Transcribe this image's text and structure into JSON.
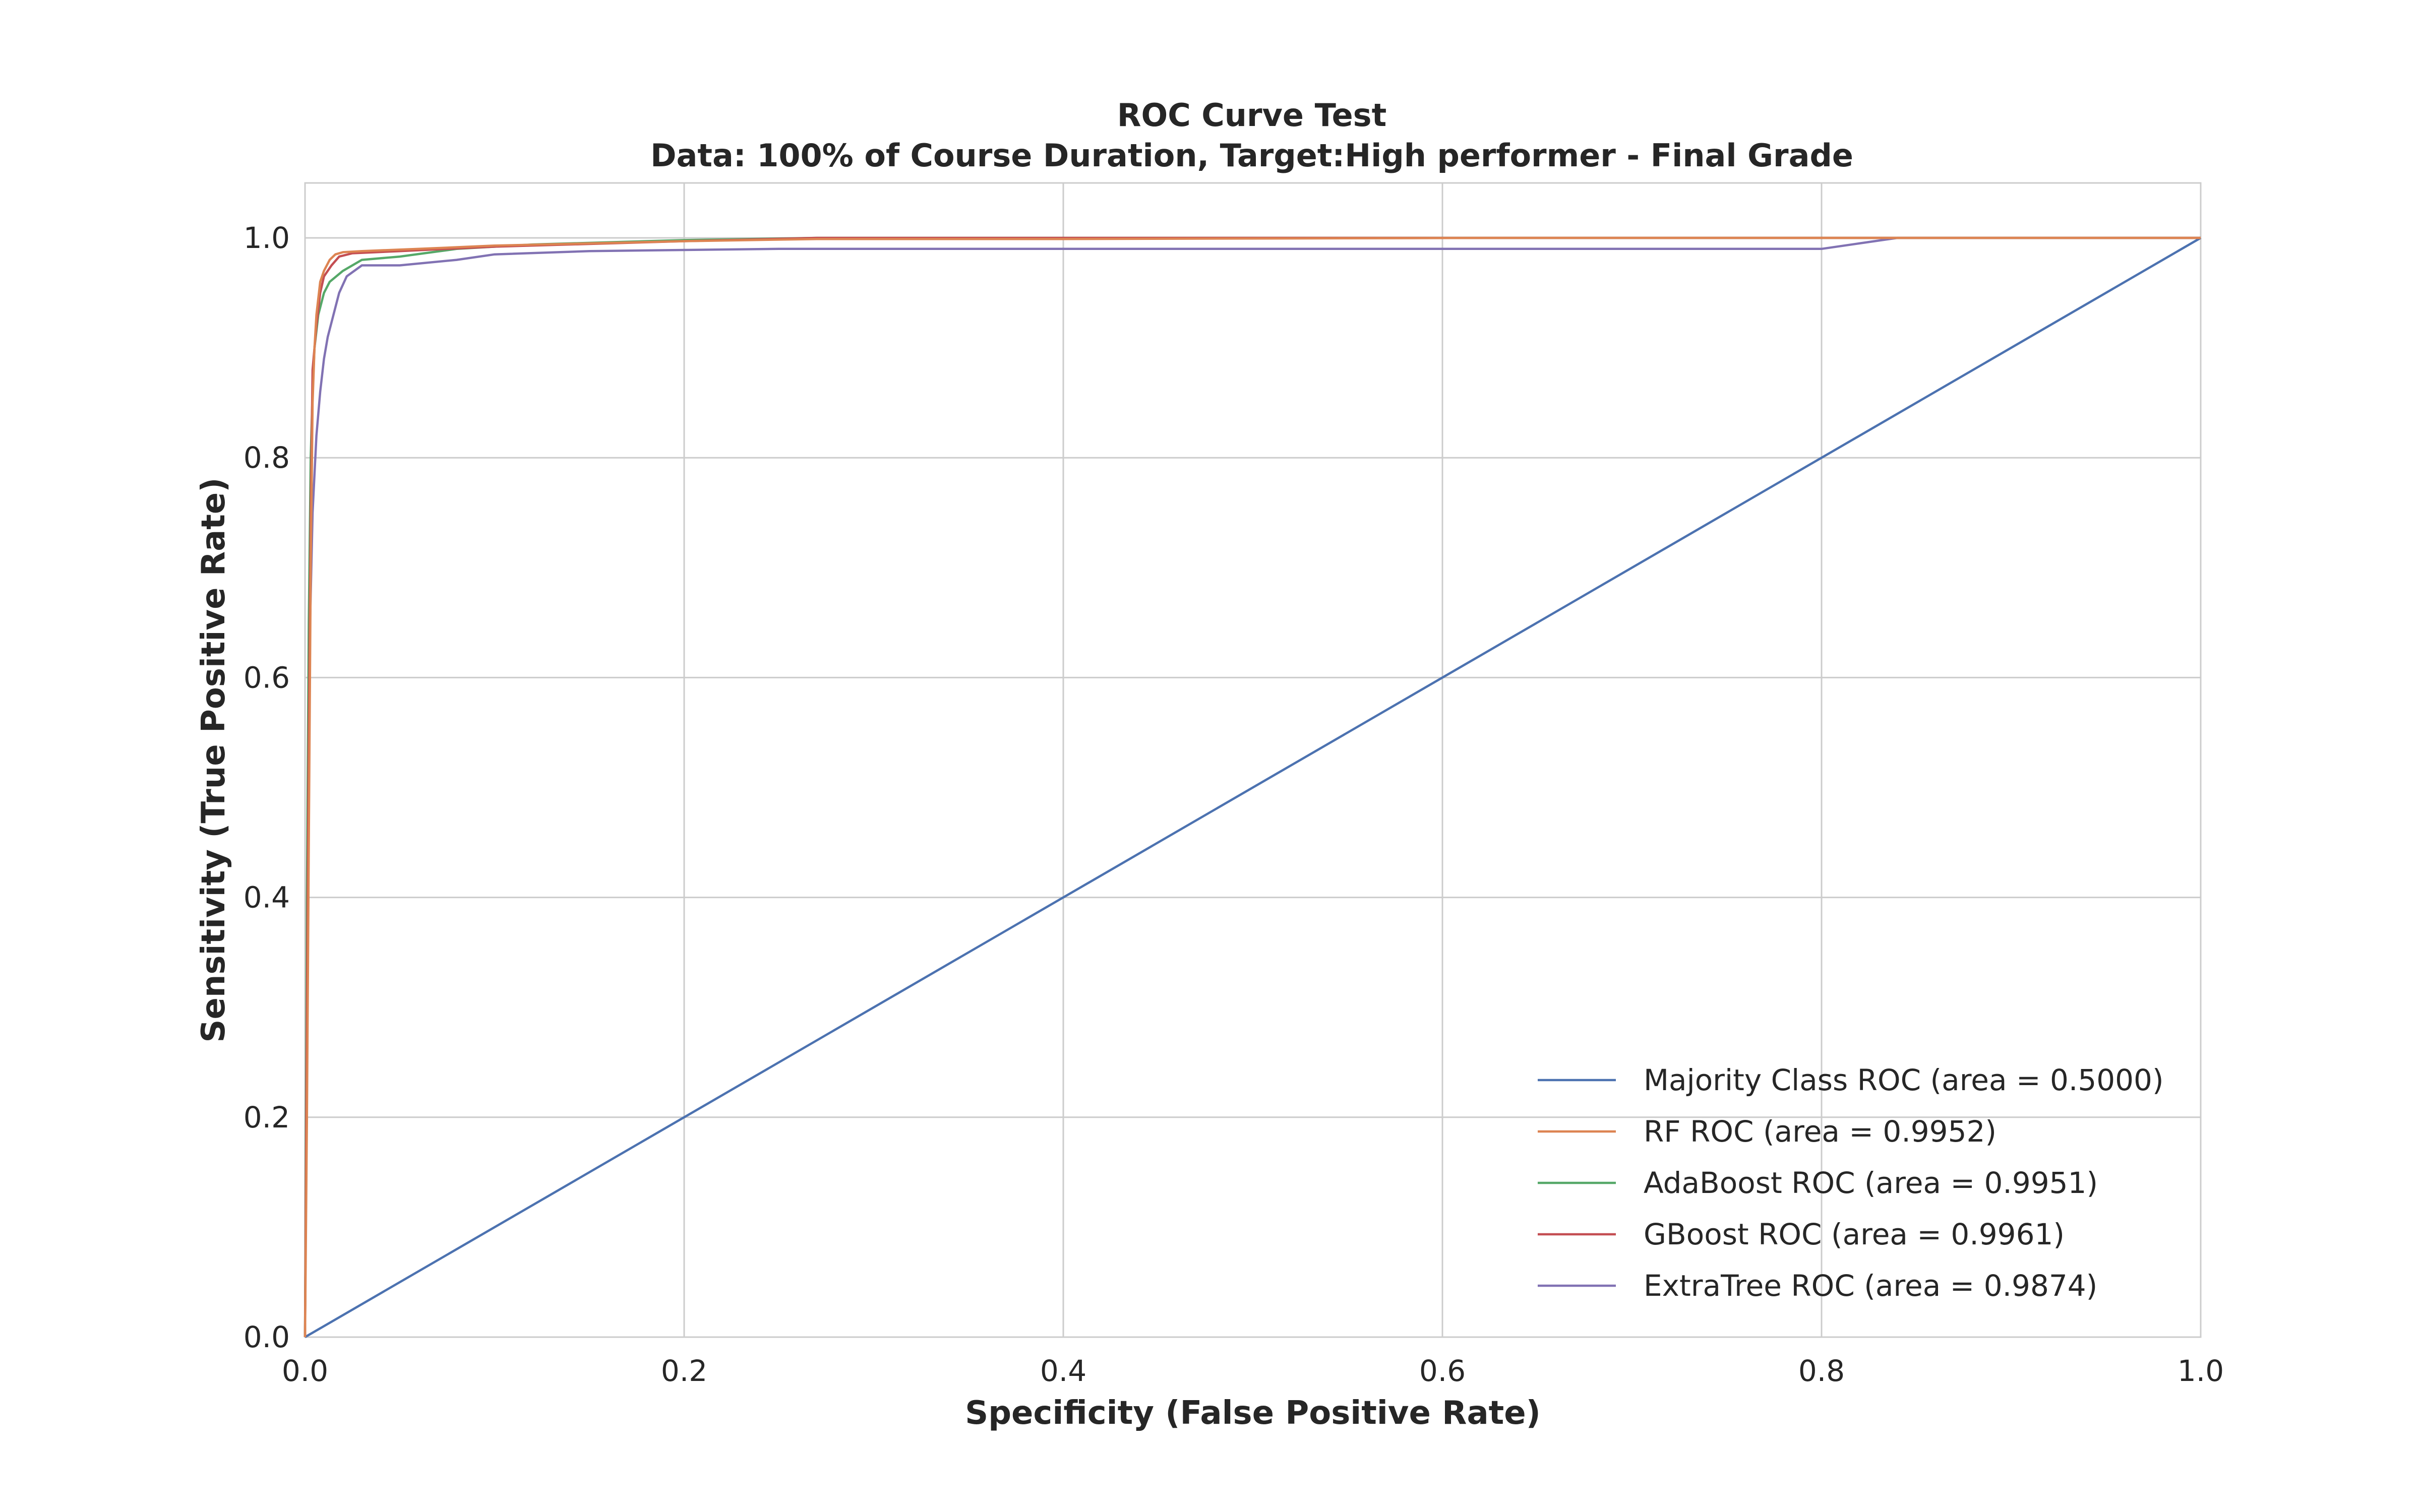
{
  "chart_data": {
    "type": "line",
    "title": "ROC Curve Test",
    "subtitle": "Data: 100% of Course Duration, Target:High performer - Final Grade",
    "xlabel": "Specificity (False Positive Rate)",
    "ylabel": "Sensitivity (True Positive Rate)",
    "xlim": [
      0.0,
      1.0
    ],
    "ylim": [
      0.0,
      1.0
    ],
    "xticks": [
      "0.0",
      "0.2",
      "0.4",
      "0.6",
      "0.8",
      "1.0"
    ],
    "yticks": [
      "0.0",
      "0.2",
      "0.4",
      "0.6",
      "0.8",
      "1.0"
    ],
    "grid": true,
    "legend_position": "bottom-right",
    "series": [
      {
        "name": "Majority Class ROC (area = 0.5000)",
        "color": "#4c72b0",
        "x": [
          0.0,
          1.0
        ],
        "y": [
          0.0,
          1.0
        ]
      },
      {
        "name": "RF ROC (area = 0.9952)",
        "color": "#dd8452",
        "x": [
          0.0,
          0.001,
          0.002,
          0.003,
          0.004,
          0.005,
          0.006,
          0.008,
          0.01,
          0.013,
          0.016,
          0.02,
          0.03,
          0.06,
          0.1,
          0.15,
          0.2,
          0.27,
          0.4,
          0.63,
          0.85,
          1.0
        ],
        "y": [
          0.0,
          0.2,
          0.45,
          0.7,
          0.85,
          0.9,
          0.93,
          0.96,
          0.97,
          0.98,
          0.985,
          0.987,
          0.988,
          0.99,
          0.993,
          0.995,
          0.997,
          0.999,
          0.999,
          1.0,
          1.0,
          1.0
        ]
      },
      {
        "name": "AdaBoost ROC (area = 0.9951)",
        "color": "#55a868",
        "x": [
          0.0,
          0.001,
          0.002,
          0.003,
          0.004,
          0.005,
          0.007,
          0.01,
          0.013,
          0.02,
          0.03,
          0.05,
          0.08,
          0.12,
          0.2,
          0.27,
          0.5,
          0.85,
          1.0
        ],
        "y": [
          0.0,
          0.4,
          0.65,
          0.8,
          0.86,
          0.9,
          0.93,
          0.95,
          0.96,
          0.97,
          0.98,
          0.983,
          0.99,
          0.994,
          0.998,
          1.0,
          1.0,
          1.0,
          1.0
        ]
      },
      {
        "name": "GBoost ROC (area = 0.9961)",
        "color": "#c44e52",
        "x": [
          0.0,
          0.001,
          0.002,
          0.003,
          0.004,
          0.006,
          0.008,
          0.01,
          0.014,
          0.018,
          0.025,
          0.05,
          0.1,
          0.2,
          0.27,
          0.5,
          0.63,
          0.85,
          1.0
        ],
        "y": [
          0.0,
          0.3,
          0.55,
          0.75,
          0.88,
          0.92,
          0.95,
          0.965,
          0.975,
          0.983,
          0.986,
          0.988,
          0.992,
          0.997,
          1.0,
          1.0,
          1.0,
          1.0,
          1.0
        ]
      },
      {
        "name": "ExtraTree ROC (area = 0.9874)",
        "color": "#8172b3",
        "x": [
          0.0,
          0.002,
          0.004,
          0.006,
          0.008,
          0.01,
          0.012,
          0.015,
          0.018,
          0.022,
          0.03,
          0.05,
          0.08,
          0.1,
          0.15,
          0.25,
          0.5,
          0.8,
          0.82,
          0.84,
          1.0
        ],
        "y": [
          0.0,
          0.6,
          0.75,
          0.82,
          0.86,
          0.89,
          0.91,
          0.93,
          0.95,
          0.965,
          0.975,
          0.975,
          0.98,
          0.985,
          0.988,
          0.99,
          0.99,
          0.99,
          0.995,
          1.0,
          1.0
        ]
      }
    ]
  }
}
